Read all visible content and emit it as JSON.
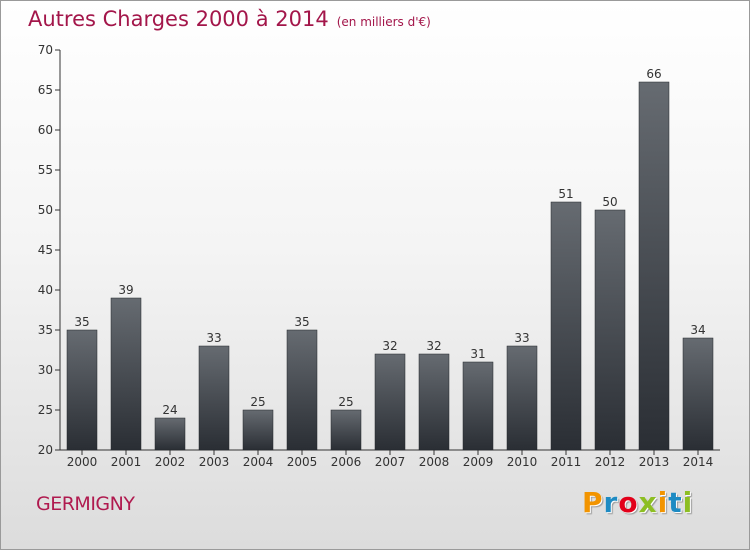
{
  "header": {
    "title": "Autres Charges 2000 à 2014",
    "subtitle": "(en milliers d'€)"
  },
  "footer": {
    "commune": "GERMIGNY",
    "logo_text": "Proxiti"
  },
  "colors": {
    "title": "#a3164a",
    "bar_top": "#666b71",
    "bar_bottom": "#2a2e34",
    "logo": [
      "#f29400",
      "#1e8bc3",
      "#e2001a",
      "#8dbe23",
      "#f29400",
      "#1e8bc3",
      "#8dbe23"
    ]
  },
  "chart_data": {
    "type": "bar",
    "categories": [
      "2000",
      "2001",
      "2002",
      "2003",
      "2004",
      "2005",
      "2006",
      "2007",
      "2008",
      "2009",
      "2010",
      "2011",
      "2012",
      "2013",
      "2014"
    ],
    "values": [
      35,
      39,
      24,
      33,
      25,
      35,
      25,
      32,
      32,
      31,
      33,
      51,
      50,
      66,
      34
    ],
    "title": "Autres Charges 2000 à 2014",
    "subtitle": "(en milliers d'€)",
    "xlabel": "",
    "ylabel": "",
    "ylim": [
      20,
      70
    ],
    "yticks": [
      20,
      25,
      30,
      35,
      40,
      45,
      50,
      55,
      60,
      65,
      70
    ],
    "grid": false,
    "data_labels": true
  }
}
